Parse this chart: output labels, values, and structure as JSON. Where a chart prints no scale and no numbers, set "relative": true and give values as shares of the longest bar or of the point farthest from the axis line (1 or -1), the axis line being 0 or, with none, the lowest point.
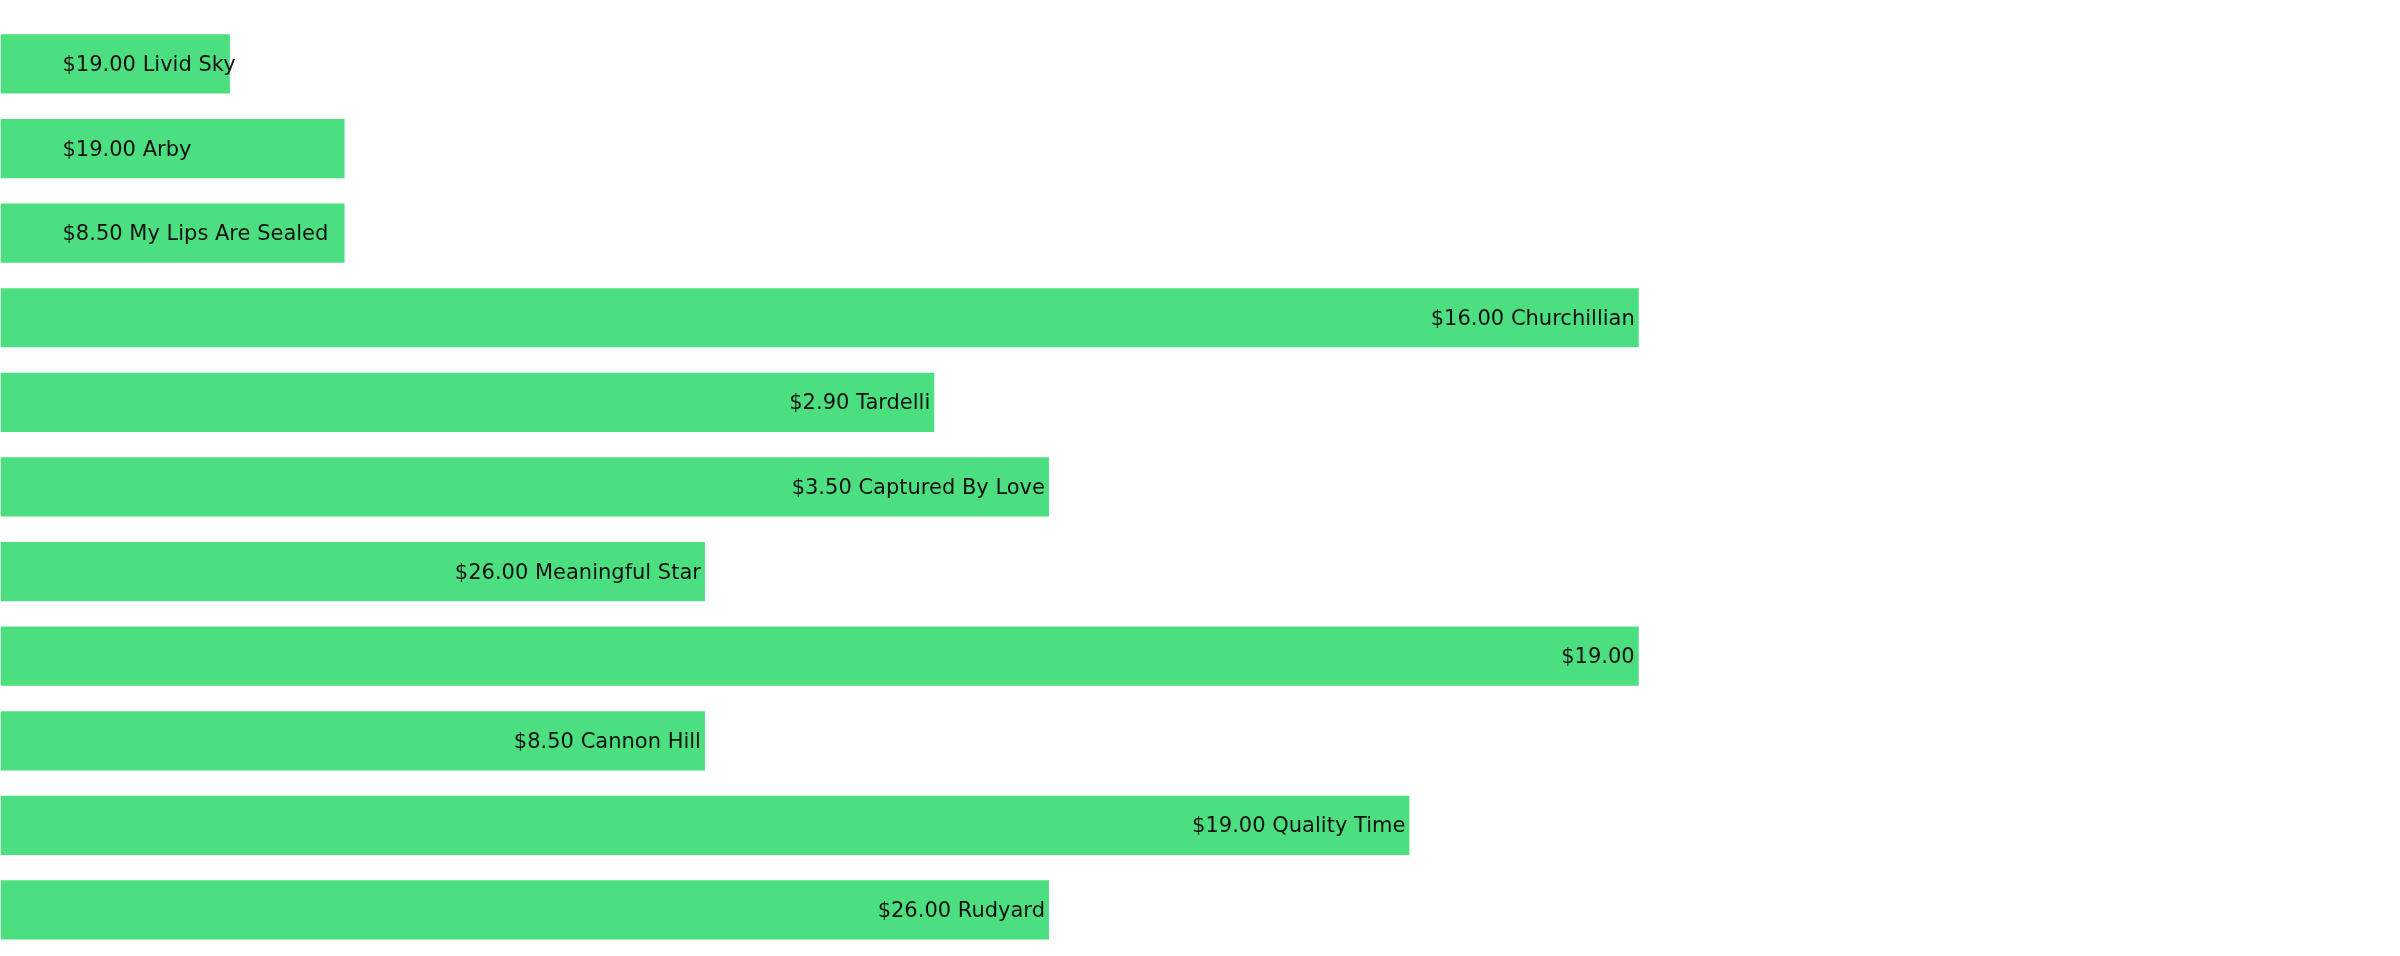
{
  "chart_data": {
    "type": "bar",
    "orientation": "horizontal",
    "relative": true,
    "color": "#4cdf80",
    "grid": false,
    "categories": [
      "$19.00 Livid Sky",
      "$19.00 Arby",
      "$8.50 My Lips Are Sealed",
      "$16.00 Churchillian",
      "$2.90 Tardelli",
      "$3.50 Captured By Love",
      "$26.00 Meaningful Star",
      "$19.00",
      "$8.50 Cannon Hill",
      "$19.00 Quality Time",
      "$26.00 Rudyard"
    ],
    "values": [
      0.14,
      0.21,
      0.21,
      1,
      0.57,
      0.64,
      0.43,
      1,
      0.43,
      0.86,
      0.64
    ]
  }
}
